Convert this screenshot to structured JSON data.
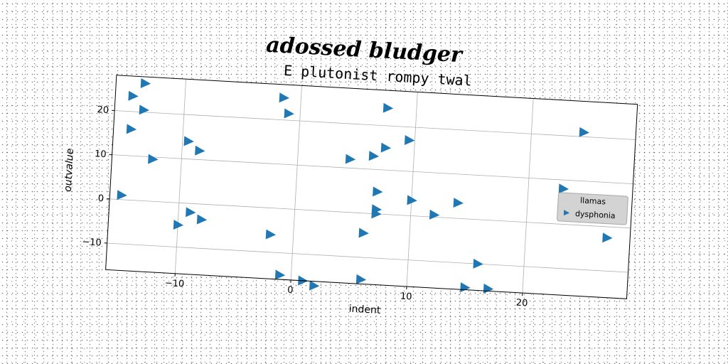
{
  "figure": {
    "suptitle": "adossed bludger",
    "background": "#ffffff"
  },
  "chart_data": {
    "type": "scatter",
    "title": "E plutonist rompy twal",
    "xlabel": "indent",
    "ylabel": "outvalue",
    "xlim": [
      -16,
      29
    ],
    "ylim": [
      -16,
      28
    ],
    "xticks": [
      -10,
      0,
      10,
      20
    ],
    "yticks": [
      -10,
      0,
      10,
      20
    ],
    "xtick_labels": [
      "−10",
      "0",
      "10",
      "20"
    ],
    "ytick_labels": [
      "−10",
      "0",
      "10",
      "20"
    ],
    "grid": true,
    "marker": "triangle-right",
    "colors": {
      "series": "#1f77b4",
      "grid": "#b0b0b0",
      "legend_bg": "#d3d3d3"
    },
    "legend": {
      "title": "llamas",
      "placement": "right"
    },
    "series": [
      {
        "name": "dysphonia",
        "x": [
          -13.5,
          -14.5,
          -13.5,
          -14.5,
          -12.5,
          -9.5,
          -8.5,
          -15,
          -9,
          -8,
          -10,
          -1.5,
          -1,
          -2,
          -1,
          1,
          2,
          4.5,
          6.5,
          7.5,
          7.5,
          9.5,
          7,
          10,
          14,
          7,
          12,
          7,
          6,
          6,
          15,
          17,
          16,
          24.5,
          23,
          27
        ],
        "y": [
          26.5,
          23.5,
          20.5,
          16,
          9.5,
          14,
          12,
          1,
          -2,
          -3.5,
          -5,
          25,
          21.5,
          -6,
          -15,
          -16,
          -17,
          12,
          13,
          15,
          24,
          17,
          5,
          3.5,
          3.5,
          1,
          0.5,
          0,
          -4.5,
          -15,
          -15.5,
          -15.5,
          -10,
          21,
          8,
          -2.5
        ]
      }
    ]
  }
}
